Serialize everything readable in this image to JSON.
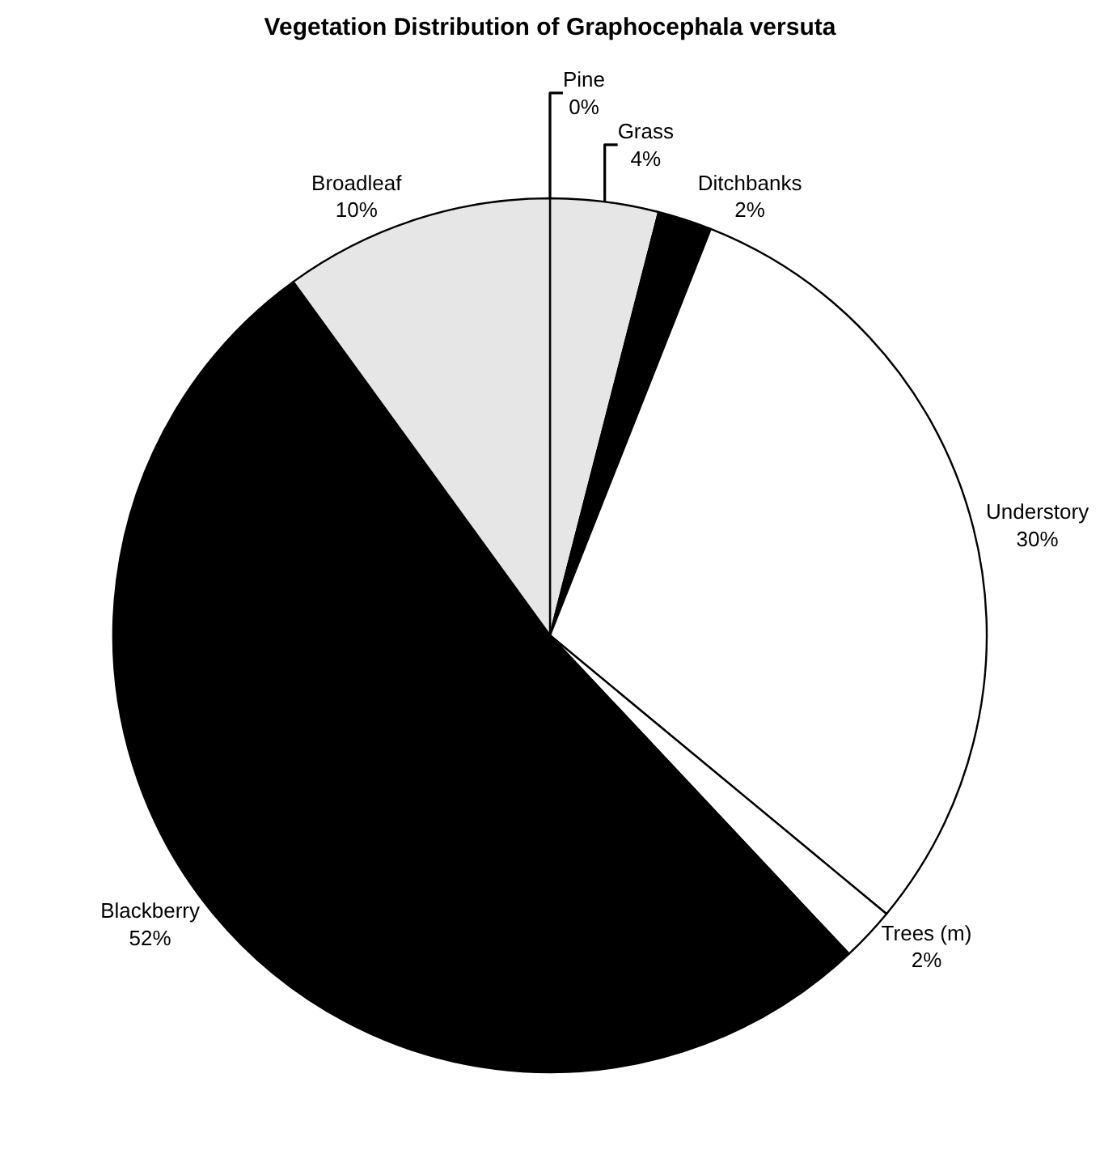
{
  "chart_data": {
    "type": "pie",
    "title": "Vegetation Distribution of Graphocephala versuta",
    "categories": [
      "Pine",
      "Grass",
      "Ditchbanks",
      "Understory",
      "Trees (m)",
      "Blackberry",
      "Broadleaf"
    ],
    "values": [
      0,
      4,
      2,
      30,
      2,
      52,
      10
    ],
    "value_labels": [
      "0%",
      "4%",
      "2%",
      "30%",
      "2%",
      "52%",
      "10%"
    ],
    "colors": [
      "#ffffff",
      "#e6e6e6",
      "#000000",
      "#ffffff",
      "#ffffff",
      "#000000",
      "#e6e6e6"
    ],
    "legend": false
  }
}
